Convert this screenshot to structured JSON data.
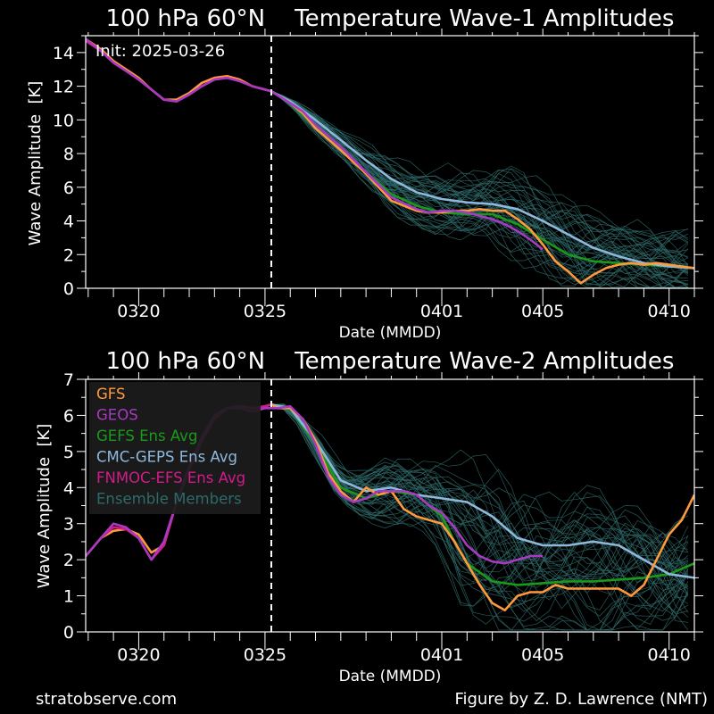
{
  "footer": {
    "site": "stratobserve.com",
    "credit": "Figure by Z. D. Lawrence (NMT)"
  },
  "colors": {
    "background": "#000000",
    "gfs": "#ff9a3c",
    "geos": "#a83ac2",
    "gefs": "#1a9a1a",
    "geps": "#8fb9dc",
    "fnmoc": "#d21a8a",
    "members": "#2f6a6a"
  },
  "chart_data": [
    {
      "type": "line",
      "title": "100 hPa 60°N    Temperature Wave-1 Amplitudes",
      "annotation": "Init: 2025-03-26",
      "xlabel": "Date (MMDD)",
      "ylabel": "Wave Amplitude  [K]",
      "x_ticks": [
        "0320",
        "0325",
        "0401",
        "0405",
        "0410"
      ],
      "x_tick_days": [
        3,
        8,
        15,
        19,
        24
      ],
      "x_unit": "days since 0317",
      "xlim": [
        0.9,
        25.0
      ],
      "ylim": [
        0,
        15
      ],
      "y_ticks": [
        0,
        2,
        4,
        6,
        8,
        10,
        12,
        14
      ],
      "init_day": 8.25,
      "series": [
        {
          "name": "GFS",
          "color": "#ff9a3c",
          "x": [
            0.9,
            1.5,
            2,
            2.5,
            3,
            3.5,
            4,
            4.5,
            5,
            5.5,
            6,
            6.5,
            7,
            7.5,
            8,
            8.25,
            9,
            9.5,
            10,
            11,
            12,
            13,
            14,
            14.5,
            15,
            15.5,
            16,
            16.5,
            17,
            17.5,
            18,
            18.5,
            19,
            19.5,
            20,
            20.5,
            21,
            21.5,
            22,
            22.5,
            23,
            23.5,
            24,
            24.5,
            25
          ],
          "y": [
            14.8,
            14.2,
            13.5,
            13.0,
            12.5,
            11.8,
            11.2,
            11.2,
            11.6,
            12.2,
            12.5,
            12.6,
            12.4,
            12.0,
            11.8,
            11.7,
            11.0,
            10.4,
            9.5,
            8.2,
            6.8,
            5.2,
            4.6,
            4.5,
            4.5,
            4.6,
            4.6,
            4.7,
            4.6,
            4.6,
            4.1,
            3.5,
            2.6,
            1.6,
            1.0,
            0.3,
            0.8,
            1.2,
            1.4,
            1.5,
            1.4,
            1.5,
            1.4,
            1.3,
            1.2
          ]
        },
        {
          "name": "GEOS",
          "color": "#a83ac2",
          "x": [
            0.9,
            1.5,
            2,
            2.5,
            3,
            3.5,
            4,
            4.5,
            5,
            5.5,
            6,
            6.5,
            7,
            7.5,
            8,
            8.25,
            9,
            9.5,
            10,
            11,
            12,
            13,
            14,
            14.5,
            15,
            15.5,
            16,
            16.5,
            17,
            17.5,
            18,
            18.5,
            19
          ],
          "y": [
            14.8,
            14.1,
            13.4,
            12.9,
            12.4,
            11.8,
            11.2,
            11.1,
            11.5,
            12.0,
            12.4,
            12.5,
            12.3,
            12.0,
            11.8,
            11.7,
            11.0,
            10.5,
            9.7,
            8.4,
            6.9,
            5.4,
            4.7,
            4.5,
            4.6,
            4.6,
            4.5,
            4.3,
            4.1,
            3.8,
            3.4,
            2.9,
            2.3
          ]
        },
        {
          "name": "GEFS Ens Avg",
          "color": "#1a9a1a",
          "x": [
            8.25,
            9,
            10,
            11,
            12,
            13,
            14,
            15,
            16,
            17,
            18,
            19,
            20,
            21,
            22,
            23,
            24,
            25
          ],
          "y": [
            11.7,
            11.0,
            9.6,
            8.2,
            6.9,
            5.6,
            4.9,
            4.5,
            4.4,
            4.4,
            3.8,
            2.9,
            2.0,
            1.6,
            1.5,
            1.4,
            1.3,
            1.2
          ]
        },
        {
          "name": "CMC-GEPS Ens Avg",
          "color": "#8fb9dc",
          "x": [
            8.25,
            9,
            10,
            11,
            12,
            13,
            14,
            15,
            16,
            17,
            18,
            19,
            20,
            21,
            22,
            23,
            24,
            25
          ],
          "y": [
            11.7,
            11.1,
            10.0,
            8.8,
            7.6,
            6.5,
            5.7,
            5.3,
            5.1,
            5.0,
            4.7,
            4.0,
            3.2,
            2.4,
            1.9,
            1.5,
            1.3,
            1.2
          ]
        },
        {
          "name": "FNMOC-EFS Ens Avg",
          "color": "#d21a8a",
          "x": [
            0.9,
            1.5,
            2,
            2.5,
            3,
            3.5,
            4,
            4.5,
            5,
            5.5,
            6,
            6.5,
            7,
            7.5,
            8,
            8.25
          ],
          "y": [
            14.7,
            14.1,
            13.4,
            12.9,
            12.4,
            11.8,
            11.2,
            11.1,
            11.5,
            12.0,
            12.4,
            12.5,
            12.3,
            12.0,
            11.8,
            11.7
          ]
        }
      ]
    },
    {
      "type": "line",
      "title": "100 hPa 60°N    Temperature Wave-2 Amplitudes",
      "xlabel": "Date (MMDD)",
      "ylabel": "Wave Amplitude  [K]",
      "x_ticks": [
        "0320",
        "0325",
        "0401",
        "0405",
        "0410"
      ],
      "x_tick_days": [
        3,
        8,
        15,
        19,
        24
      ],
      "xlim": [
        0.9,
        25.0
      ],
      "ylim": [
        0,
        7
      ],
      "y_ticks": [
        0,
        1,
        2,
        3,
        4,
        5,
        6,
        7
      ],
      "init_day": 8.25,
      "legend": {
        "placement": "upper-left",
        "entries": [
          "GFS",
          "GEOS",
          "GEFS Ens Avg",
          "CMC-GEPS Ens Avg",
          "FNMOC-EFS Ens Avg",
          "Ensemble Members"
        ]
      },
      "series": [
        {
          "name": "GFS",
          "color": "#ff9a3c",
          "x": [
            0.9,
            1.5,
            2,
            2.5,
            3,
            3.5,
            4,
            4.5,
            5,
            5.5,
            6,
            6.5,
            7,
            7.5,
            8,
            8.25,
            8.5,
            9,
            9.5,
            10,
            10.5,
            11,
            11.5,
            12,
            12.5,
            13,
            13.5,
            14,
            14.5,
            15,
            15.5,
            16,
            16.5,
            17,
            17.5,
            18,
            18.5,
            19,
            19.5,
            20,
            20.5,
            21,
            21.5,
            22,
            22.5,
            23,
            23.5,
            24,
            24.5,
            25
          ],
          "y": [
            2.1,
            2.6,
            2.8,
            2.85,
            2.7,
            2.2,
            2.4,
            3.6,
            4.5,
            5.3,
            5.9,
            6.2,
            6.25,
            6.2,
            6.25,
            6.3,
            6.2,
            6.2,
            5.9,
            5.3,
            4.4,
            3.9,
            3.6,
            4.0,
            3.8,
            3.9,
            3.4,
            3.2,
            3.1,
            3.0,
            2.5,
            1.9,
            1.3,
            0.8,
            0.6,
            1.0,
            1.1,
            1.1,
            1.3,
            1.2,
            1.2,
            1.2,
            1.2,
            1.2,
            1.0,
            1.3,
            2.0,
            2.7,
            3.1,
            3.8
          ]
        },
        {
          "name": "GEOS",
          "color": "#a83ac2",
          "x": [
            0.9,
            1.5,
            2,
            2.5,
            3,
            3.5,
            4,
            4.5,
            5,
            5.5,
            6,
            6.5,
            7,
            7.5,
            8,
            8.25,
            8.5,
            9,
            9.5,
            10,
            10.5,
            11,
            11.5,
            12,
            12.5,
            13,
            13.5,
            14,
            14.5,
            15,
            15.5,
            16,
            16.5,
            17,
            17.5,
            18,
            18.5,
            19
          ],
          "y": [
            2.1,
            2.6,
            3.0,
            2.9,
            2.6,
            2.0,
            2.5,
            3.6,
            4.6,
            5.4,
            6.0,
            6.2,
            6.2,
            6.1,
            6.2,
            6.2,
            6.2,
            6.25,
            5.9,
            5.2,
            4.3,
            3.8,
            3.6,
            3.7,
            3.9,
            3.9,
            3.9,
            3.8,
            3.5,
            3.3,
            2.9,
            2.4,
            2.1,
            1.95,
            1.9,
            2.0,
            2.1,
            2.1
          ]
        },
        {
          "name": "GEFS Ens Avg",
          "color": "#1a9a1a",
          "x": [
            8.25,
            9,
            10,
            11,
            12,
            13,
            14,
            15,
            15.5,
            16,
            17,
            18,
            19,
            20,
            21,
            22,
            23,
            24,
            25
          ],
          "y": [
            6.3,
            6.2,
            5.2,
            4.0,
            3.7,
            3.9,
            3.8,
            3.2,
            2.5,
            1.9,
            1.4,
            1.3,
            1.35,
            1.4,
            1.4,
            1.45,
            1.5,
            1.6,
            1.9
          ]
        },
        {
          "name": "CMC-GEPS Ens Avg",
          "color": "#8fb9dc",
          "x": [
            8.25,
            9,
            10,
            11,
            12,
            13,
            14,
            15,
            16,
            17,
            18,
            19,
            20,
            21,
            22,
            23,
            24,
            25
          ],
          "y": [
            6.3,
            6.2,
            5.3,
            4.2,
            3.9,
            4.0,
            3.8,
            3.7,
            3.6,
            3.2,
            2.6,
            2.4,
            2.4,
            2.5,
            2.4,
            2.0,
            1.6,
            1.5
          ]
        },
        {
          "name": "FNMOC-EFS Ens Avg",
          "color": "#d21a8a",
          "x": [
            0.9,
            1.5,
            2,
            2.5,
            3,
            3.5,
            4,
            4.5,
            5,
            5.5,
            6,
            6.5,
            7,
            7.5,
            8,
            8.25
          ],
          "y": [
            2.1,
            2.6,
            2.9,
            2.85,
            2.6,
            2.0,
            2.4,
            3.6,
            4.5,
            5.3,
            5.9,
            6.2,
            6.25,
            6.2,
            6.25,
            6.3
          ]
        }
      ]
    }
  ]
}
